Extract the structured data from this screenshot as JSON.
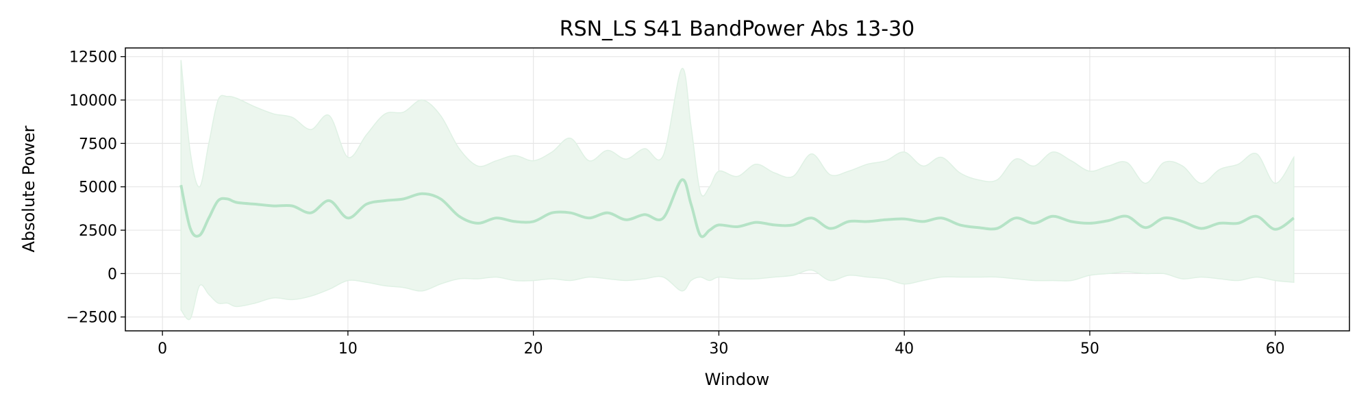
{
  "chart_data": {
    "type": "line",
    "title": "RSN_LS S41 BandPower Abs 13-30",
    "xlabel": "Window",
    "ylabel": "Absolute Power",
    "xlim": [
      -2,
      64
    ],
    "ylim": [
      -3300,
      13000
    ],
    "x_ticks": [
      0,
      10,
      20,
      30,
      40,
      50,
      60
    ],
    "y_ticks": [
      -2500,
      0,
      2500,
      5000,
      7500,
      10000,
      12500
    ],
    "y_tick_labels": [
      "−2500",
      "0",
      "2500",
      "5000",
      "7500",
      "10000",
      "12500"
    ],
    "grid": true,
    "legend": "none",
    "colors": {
      "line": "#b5e3c6",
      "band": "#ecf6ee",
      "band_edge": "#dff1e4",
      "grid": "#e6e6e6"
    },
    "series": [
      {
        "x": [
          1,
          1.5,
          2,
          2.5,
          3,
          3.5,
          4,
          5,
          6,
          7,
          8,
          9,
          10,
          11,
          12,
          13,
          14,
          15,
          16,
          17,
          18,
          19,
          20,
          21,
          22,
          23,
          24,
          25,
          26,
          27,
          28,
          28.5,
          29,
          29.5,
          30,
          31,
          32,
          33,
          34,
          35,
          36,
          37,
          38,
          39,
          40,
          41,
          42,
          43,
          44,
          45,
          46,
          47,
          48,
          49,
          50,
          51,
          52,
          53,
          54,
          55,
          56,
          57,
          58,
          59,
          60,
          61
        ],
        "mean": [
          5100,
          2600,
          2200,
          3200,
          4200,
          4300,
          4100,
          4000,
          3900,
          3900,
          3500,
          4200,
          3200,
          4000,
          4200,
          4300,
          4600,
          4300,
          3300,
          2900,
          3200,
          3000,
          3000,
          3500,
          3500,
          3200,
          3500,
          3100,
          3400,
          3200,
          5400,
          4000,
          2200,
          2500,
          2800,
          2700,
          2950,
          2800,
          2800,
          3200,
          2600,
          3000,
          3000,
          3100,
          3150,
          3000,
          3200,
          2800,
          2650,
          2600,
          3200,
          2900,
          3300,
          3000,
          2900,
          3050,
          3300,
          2650,
          3200,
          3000,
          2600,
          2900,
          2900,
          3300,
          2550,
          3200
        ],
        "upper": [
          12300,
          7000,
          5000,
          7500,
          10000,
          10200,
          10100,
          9600,
          9200,
          9000,
          8300,
          9100,
          6700,
          8000,
          9200,
          9300,
          10000,
          9100,
          7200,
          6200,
          6500,
          6800,
          6500,
          7000,
          7800,
          6500,
          7100,
          6600,
          7200,
          6800,
          11800,
          8500,
          4700,
          5000,
          5900,
          5600,
          6300,
          5800,
          5600,
          6900,
          5700,
          5900,
          6300,
          6500,
          7000,
          6200,
          6700,
          5800,
          5400,
          5400,
          6600,
          6200,
          7000,
          6500,
          5900,
          6200,
          6400,
          5200,
          6400,
          6200,
          5200,
          6000,
          6300,
          6900,
          5200,
          6700
        ],
        "lower": [
          -2100,
          -2600,
          -700,
          -1200,
          -1700,
          -1700,
          -1900,
          -1700,
          -1400,
          -1500,
          -1300,
          -900,
          -400,
          -500,
          -700,
          -800,
          -1000,
          -600,
          -300,
          -300,
          -200,
          -400,
          -400,
          -300,
          -400,
          -200,
          -300,
          -400,
          -300,
          -200,
          -1000,
          -400,
          -200,
          -400,
          -200,
          -300,
          -300,
          -200,
          -100,
          200,
          -400,
          -100,
          -200,
          -300,
          -600,
          -400,
          -200,
          -200,
          -200,
          -200,
          -300,
          -400,
          -400,
          -400,
          -100,
          0,
          100,
          0,
          0,
          -300,
          -200,
          -300,
          -400,
          -200,
          -400,
          -500
        ]
      }
    ]
  }
}
